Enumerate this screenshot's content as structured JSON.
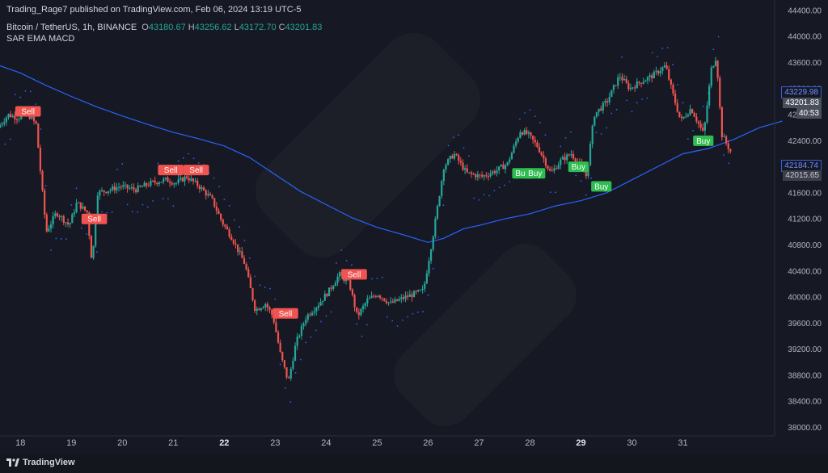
{
  "header": {
    "publisher_line": "Trading_Rage7 published on TradingView.com, Feb 06, 2024 13:19 UTC-5",
    "symbol": "Bitcoin / TetherUS, 1h, BINANCE",
    "ohlc": [
      {
        "key": "O",
        "value": "43180.67"
      },
      {
        "key": "H",
        "value": "43256.62"
      },
      {
        "key": "L",
        "value": "43172.70"
      },
      {
        "key": "C",
        "value": "43201.83"
      }
    ],
    "indicators_label": "SAR EMA MACD"
  },
  "price_tags": [
    {
      "label": "43229.98",
      "style": "outline-blue"
    },
    {
      "label": "43201.83",
      "style": "gray"
    },
    {
      "label": "40:53",
      "style": "gray"
    },
    {
      "label": "42184.74",
      "style": "outline-blue"
    },
    {
      "label": "42015.65",
      "style": "gray-dark"
    }
  ],
  "footer": {
    "brand": "TradingView"
  },
  "colors": {
    "background": "#161923",
    "up_candle": "#26a69a",
    "down_candle": "#ef5350",
    "ema_line": "#2962ff",
    "sar_dots": "#2962ff",
    "sell_label": "#f05350",
    "buy_label": "#2ebd4f",
    "axis_text": "#b2b5be"
  },
  "chart_data": {
    "type": "candlestick",
    "y_axis_ticks": [
      44400,
      44000,
      43600,
      43200,
      42800,
      42400,
      42000,
      41600,
      41200,
      40800,
      40400,
      40000,
      39600,
      39200,
      38800,
      38400,
      38000
    ],
    "ylim": [
      37870,
      44560
    ],
    "x_axis_ticks": [
      {
        "label": "18",
        "day": 18,
        "bold": false
      },
      {
        "label": "19",
        "day": 19,
        "bold": false
      },
      {
        "label": "20",
        "day": 20,
        "bold": false
      },
      {
        "label": "21",
        "day": 21,
        "bold": false
      },
      {
        "label": "22",
        "day": 22,
        "bold": true
      },
      {
        "label": "23",
        "day": 23,
        "bold": false
      },
      {
        "label": "24",
        "day": 24,
        "bold": false
      },
      {
        "label": "25",
        "day": 25,
        "bold": false
      },
      {
        "label": "26",
        "day": 26,
        "bold": false
      },
      {
        "label": "27",
        "day": 27,
        "bold": false
      },
      {
        "label": "28",
        "day": 28,
        "bold": false
      },
      {
        "label": "29",
        "day": 29,
        "bold": true
      },
      {
        "label": "30",
        "day": 30,
        "bold": false
      },
      {
        "label": "31",
        "day": 31,
        "bold": false
      }
    ],
    "xlim_days": [
      17.6,
      32.8
    ],
    "price_path": [
      [
        17.6,
        42600
      ],
      [
        17.8,
        42800
      ],
      [
        18.0,
        42750
      ],
      [
        18.15,
        42850
      ],
      [
        18.35,
        42650
      ],
      [
        18.45,
        41800
      ],
      [
        18.55,
        41000
      ],
      [
        18.75,
        41300
      ],
      [
        19.0,
        41100
      ],
      [
        19.15,
        41450
      ],
      [
        19.35,
        41300
      ],
      [
        19.45,
        40500
      ],
      [
        19.55,
        41600
      ],
      [
        19.8,
        41650
      ],
      [
        20.0,
        41700
      ],
      [
        20.3,
        41650
      ],
      [
        20.6,
        41750
      ],
      [
        20.9,
        41800
      ],
      [
        21.1,
        41750
      ],
      [
        21.3,
        41850
      ],
      [
        21.55,
        41700
      ],
      [
        21.8,
        41500
      ],
      [
        22.0,
        41150
      ],
      [
        22.2,
        40900
      ],
      [
        22.45,
        40500
      ],
      [
        22.65,
        39800
      ],
      [
        22.85,
        39900
      ],
      [
        23.0,
        39700
      ],
      [
        23.15,
        39100
      ],
      [
        23.3,
        38700
      ],
      [
        23.45,
        39300
      ],
      [
        23.65,
        39700
      ],
      [
        23.9,
        39900
      ],
      [
        24.1,
        40100
      ],
      [
        24.3,
        40350
      ],
      [
        24.5,
        40200
      ],
      [
        24.65,
        39700
      ],
      [
        24.85,
        39950
      ],
      [
        25.05,
        40050
      ],
      [
        25.3,
        39900
      ],
      [
        25.6,
        40000
      ],
      [
        25.95,
        40100
      ],
      [
        26.15,
        41000
      ],
      [
        26.35,
        42000
      ],
      [
        26.55,
        42200
      ],
      [
        26.8,
        41900
      ],
      [
        27.1,
        41850
      ],
      [
        27.4,
        41950
      ],
      [
        27.6,
        42050
      ],
      [
        27.85,
        42550
      ],
      [
        28.0,
        42500
      ],
      [
        28.2,
        42300
      ],
      [
        28.45,
        41900
      ],
      [
        28.65,
        42100
      ],
      [
        28.85,
        42200
      ],
      [
        29.0,
        42050
      ],
      [
        29.15,
        41850
      ],
      [
        29.3,
        42800
      ],
      [
        29.55,
        43000
      ],
      [
        29.8,
        43400
      ],
      [
        30.0,
        43200
      ],
      [
        30.2,
        43300
      ],
      [
        30.45,
        43400
      ],
      [
        30.7,
        43550
      ],
      [
        30.85,
        43100
      ],
      [
        31.0,
        42700
      ],
      [
        31.2,
        42900
      ],
      [
        31.45,
        42500
      ],
      [
        31.6,
        43500
      ],
      [
        31.7,
        43700
      ],
      [
        31.8,
        42500
      ],
      [
        32.0,
        42200
      ],
      [
        32.2,
        42600
      ],
      [
        32.45,
        42800
      ],
      [
        32.75,
        42700
      ],
      [
        32.95,
        43200
      ]
    ],
    "ema_line": [
      [
        17.6,
        43550
      ],
      [
        18.0,
        43440
      ],
      [
        18.5,
        43250
      ],
      [
        19.0,
        43080
      ],
      [
        19.5,
        42920
      ],
      [
        20.0,
        42780
      ],
      [
        20.5,
        42650
      ],
      [
        21.0,
        42530
      ],
      [
        21.5,
        42430
      ],
      [
        22.0,
        42320
      ],
      [
        22.5,
        42140
      ],
      [
        23.0,
        41880
      ],
      [
        23.5,
        41620
      ],
      [
        24.0,
        41420
      ],
      [
        24.5,
        41220
      ],
      [
        25.0,
        41070
      ],
      [
        25.5,
        40960
      ],
      [
        26.0,
        40840
      ],
      [
        26.3,
        40900
      ],
      [
        26.7,
        41050
      ],
      [
        27.0,
        41100
      ],
      [
        27.5,
        41200
      ],
      [
        28.0,
        41280
      ],
      [
        28.5,
        41400
      ],
      [
        29.0,
        41480
      ],
      [
        29.5,
        41600
      ],
      [
        30.0,
        41800
      ],
      [
        30.5,
        42000
      ],
      [
        31.0,
        42200
      ],
      [
        31.5,
        42280
      ],
      [
        32.0,
        42420
      ],
      [
        32.5,
        42600
      ],
      [
        32.95,
        42700
      ]
    ],
    "signals": [
      {
        "label": "Sell",
        "day": 18.15,
        "price": 42850,
        "side": "sell"
      },
      {
        "label": "Sell",
        "day": 19.45,
        "price": 41200,
        "side": "sell"
      },
      {
        "label": "Sell",
        "day": 20.95,
        "price": 41950,
        "side": "sell"
      },
      {
        "label": "Sell",
        "day": 21.45,
        "price": 41950,
        "side": "sell"
      },
      {
        "label": "Sell",
        "day": 23.2,
        "price": 39750,
        "side": "sell"
      },
      {
        "label": "Sell",
        "day": 24.55,
        "price": 40350,
        "side": "sell"
      },
      {
        "label": "Buy",
        "day": 27.85,
        "price": 41900,
        "side": "buy"
      },
      {
        "label": "Buy",
        "day": 28.1,
        "price": 41900,
        "side": "buy"
      },
      {
        "label": "Buy",
        "day": 28.95,
        "price": 42000,
        "side": "buy"
      },
      {
        "label": "Buy",
        "day": 29.4,
        "price": 41700,
        "side": "buy"
      },
      {
        "label": "Buy",
        "day": 31.4,
        "price": 42400,
        "side": "buy"
      }
    ],
    "grid": false
  }
}
